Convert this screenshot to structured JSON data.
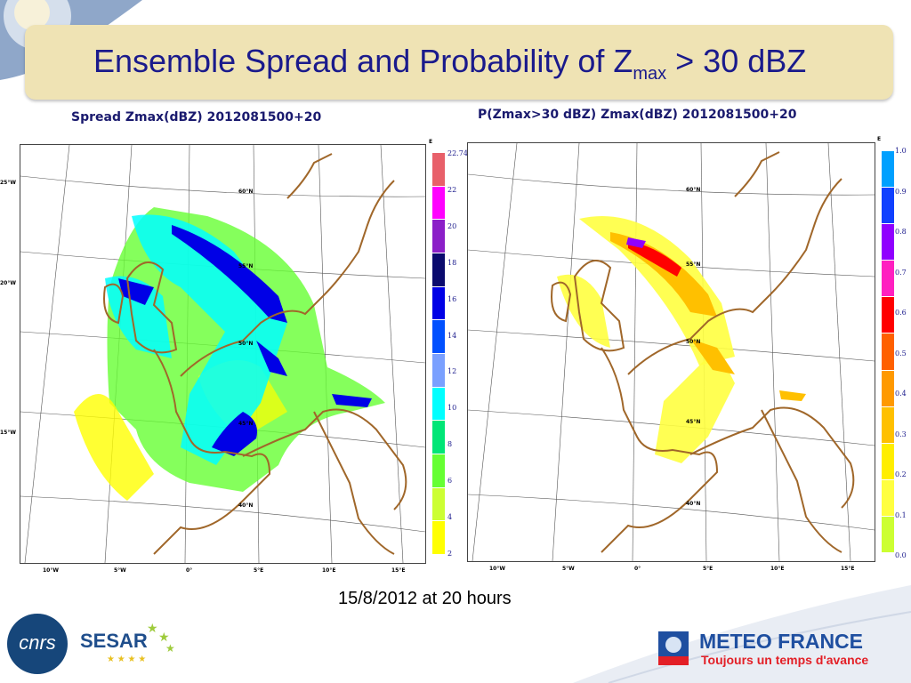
{
  "slide": {
    "title_main": "Ensemble Spread and Probability of Z",
    "title_sub": "max",
    "title_tail": " > 30 dBZ",
    "caption": "15/8/2012 at 20 hours"
  },
  "panels": [
    {
      "title": "Spread Zmax(dBZ) 2012081500+20",
      "lat_labels": [
        "60°N",
        "55°N",
        "50°N",
        "45°N",
        "40°N"
      ],
      "west_labels": [
        "25°W",
        "20°W",
        "15°W"
      ],
      "lon_labels": [
        "10°W",
        "5°W",
        "0°",
        "5°E",
        "10°E",
        "15°E"
      ],
      "corner_label": "E",
      "scale": {
        "values": [
          "22.74",
          "22",
          "20",
          "18",
          "16",
          "14",
          "12",
          "10",
          "8",
          "6",
          "4",
          "2"
        ],
        "colors": [
          "#e8606a",
          "#ff00ff",
          "#8b1fc8",
          "#0a0a6e",
          "#0000e6",
          "#0050ff",
          "#7aa0ff",
          "#00ffff",
          "#00e676",
          "#66ff33",
          "#ccff33",
          "#ffff00"
        ]
      }
    },
    {
      "title": "P(Zmax>30 dBZ) Zmax(dBZ) 2012081500+20",
      "lat_labels": [
        "60°N",
        "55°N",
        "50°N",
        "45°N",
        "40°N"
      ],
      "lon_labels": [
        "10°W",
        "5°W",
        "0°",
        "5°E",
        "10°E",
        "15°E"
      ],
      "corner_label": "E",
      "scale": {
        "values": [
          "1.0",
          "0.9",
          "0.8",
          "0.7",
          "0.6",
          "0.5",
          "0.4",
          "0.3",
          "0.2",
          "0.1",
          "0.0"
        ],
        "colors": [
          "#00a0ff",
          "#1040ff",
          "#9000ff",
          "#ff20c0",
          "#ff0000",
          "#ff6000",
          "#ff9900",
          "#ffc000",
          "#ffee00",
          "#ffff40",
          "#ccff33"
        ]
      }
    }
  ],
  "logos": {
    "cnrs": "cnrs",
    "sesar": "SESAR",
    "meteo_name": "METEO FRANCE",
    "meteo_tagline": "Toujours un temps d'avance"
  }
}
